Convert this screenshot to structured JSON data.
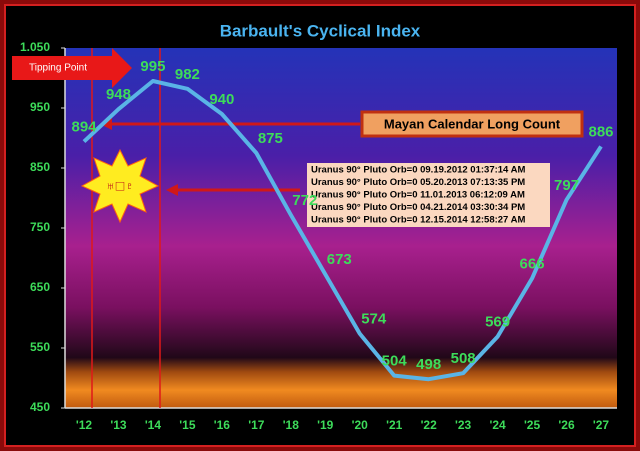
{
  "chart_data": {
    "type": "line",
    "title": "Barbault's Cyclical Index",
    "categories": [
      "'12",
      "'13",
      "'14",
      "'15",
      "'16",
      "'17",
      "'18",
      "'19",
      "'20",
      "'21",
      "'22",
      "'23",
      "'24",
      "'25",
      "'26",
      "'27"
    ],
    "values": [
      894,
      948,
      995,
      982,
      940,
      875,
      772,
      673,
      574,
      504,
      498,
      508,
      569,
      666,
      797,
      886
    ],
    "color": "#5ab4e6",
    "ylim": [
      450,
      1050
    ],
    "yticks": [
      450,
      550,
      650,
      750,
      850,
      950,
      {
        "value": 1050,
        "label": "1.050"
      }
    ],
    "grid": false,
    "annotations": {
      "tipping_point": "Tipping Point",
      "long_count": "Mayan Calendar Long Count",
      "symbol": "♅□♇",
      "orbs": [
        "Uranus  90° Pluto Orb=0 09.19.2012  01:37:14 AM",
        "Uranus  90° Pluto Orb=0 05.20.2013  07:13:35 PM",
        "Uranus  90° Pluto Orb=0 11.01.2013  06:12:09 AM",
        "Uranus  90° Pluto Orb=0 04.21.2014  03:30:34 PM",
        "Uranus  90° Pluto Orb=0 12.15.2014  12:58:27 AM"
      ]
    }
  }
}
